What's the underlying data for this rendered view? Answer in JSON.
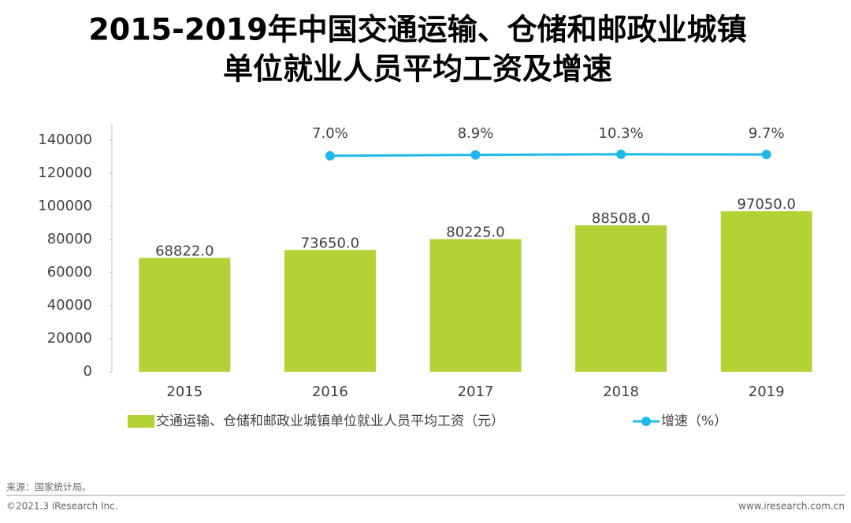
{
  "chart_data": {
    "type": "bar_line",
    "title": [
      "2015-2019年中国交通运输、仓储和邮政业城镇",
      "单位就业人员平均工资及增速"
    ],
    "categories": [
      "2015",
      "2016",
      "2017",
      "2018",
      "2019"
    ],
    "series": [
      {
        "name": "交通运输、仓储和邮政业城镇单位就业人员平均工资（元）",
        "type": "bar",
        "color": "#b2d235",
        "values": [
          68822,
          73650,
          80225,
          88508,
          97050
        ],
        "value_labels": [
          "68822.0",
          "73650.0",
          "80225.0",
          "88508.0",
          "97050.0"
        ]
      },
      {
        "name": "增速（%）",
        "type": "line",
        "axis": "y2",
        "color": "#1fb8e8",
        "values": [
          null,
          7.0,
          8.9,
          10.3,
          9.7
        ],
        "value_labels": [
          null,
          "7.0%",
          "8.9%",
          "10.3%",
          "9.7%"
        ]
      }
    ],
    "ylim": [
      0,
      140000
    ],
    "yticks": [
      0,
      20000,
      40000,
      60000,
      80000,
      100000,
      120000,
      140000
    ],
    "y2lim": [
      -450,
      40
    ],
    "legend": "bottom",
    "source": "来源：国家统计局。",
    "copyright": "©2021.3 iResearch Inc.",
    "website": "www.iresearch.com.cn"
  }
}
